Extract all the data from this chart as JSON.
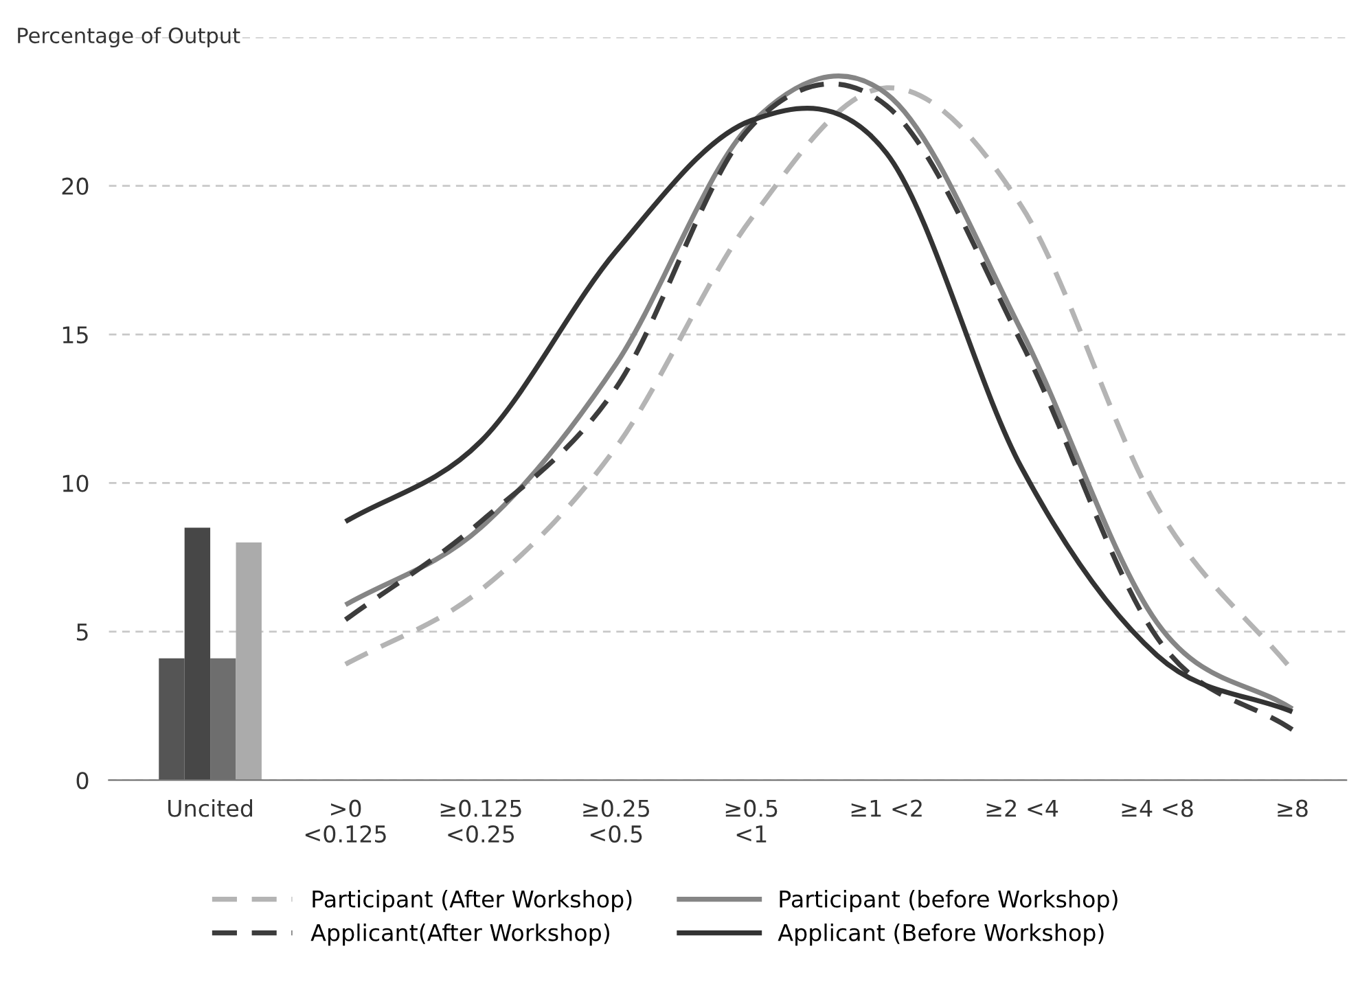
{
  "chart_data": {
    "type": "line",
    "ylabel": "Percentage of Output",
    "categories": [
      "Uncited",
      ">0\n<0.125",
      "≥0.125\n<0.25",
      "≥0.25\n<0.5",
      "≥0.5\n<1",
      "≥1 <2",
      "≥2 <4",
      "≥4 <8",
      "≥8"
    ],
    "series": [
      {
        "type": "bar",
        "color": "#555555",
        "values": [
          4.1,
          null,
          null,
          null,
          null,
          null,
          null,
          null,
          null
        ]
      },
      {
        "type": "bar",
        "color": "#474747",
        "values": [
          8.5,
          null,
          null,
          null,
          null,
          null,
          null,
          null,
          null
        ]
      },
      {
        "type": "bar",
        "color": "#6e6e6e",
        "values": [
          4.1,
          null,
          null,
          null,
          null,
          null,
          null,
          null,
          null
        ]
      },
      {
        "type": "bar",
        "color": "#ababab",
        "values": [
          8.0,
          null,
          null,
          null,
          null,
          null,
          null,
          null,
          null
        ]
      },
      {
        "name": "Participant (After Workshop)",
        "color": "#b4b4b4",
        "line_style": "dashed",
        "values": [
          null,
          3.9,
          6.4,
          11.2,
          18.9,
          23.3,
          19.3,
          9.2,
          3.7
        ]
      },
      {
        "name": "Participant (before Workshop)",
        "color": "#858585",
        "line_style": "solid",
        "values": [
          null,
          5.9,
          8.5,
          14.0,
          22.1,
          23.1,
          15.1,
          5.3,
          2.4
        ]
      },
      {
        "name": "Applicant(After Workshop)",
        "color": "#3c3c3c",
        "line_style": "dashed",
        "values": [
          null,
          5.4,
          8.7,
          13.2,
          22.0,
          22.7,
          14.7,
          4.8,
          1.7
        ]
      },
      {
        "name": "Applicant (Before Workshop)",
        "color": "#333333",
        "line_style": "solid",
        "values": [
          null,
          8.7,
          11.4,
          17.8,
          22.2,
          21.1,
          10.5,
          4.2,
          2.3
        ]
      }
    ],
    "ylim": [
      0,
      25
    ],
    "yticks": [
      0,
      5,
      10,
      15,
      20,
      {
        "value": 25,
        "label": null
      }
    ],
    "grid": "y",
    "legend": "bottom",
    "marker": "none"
  }
}
